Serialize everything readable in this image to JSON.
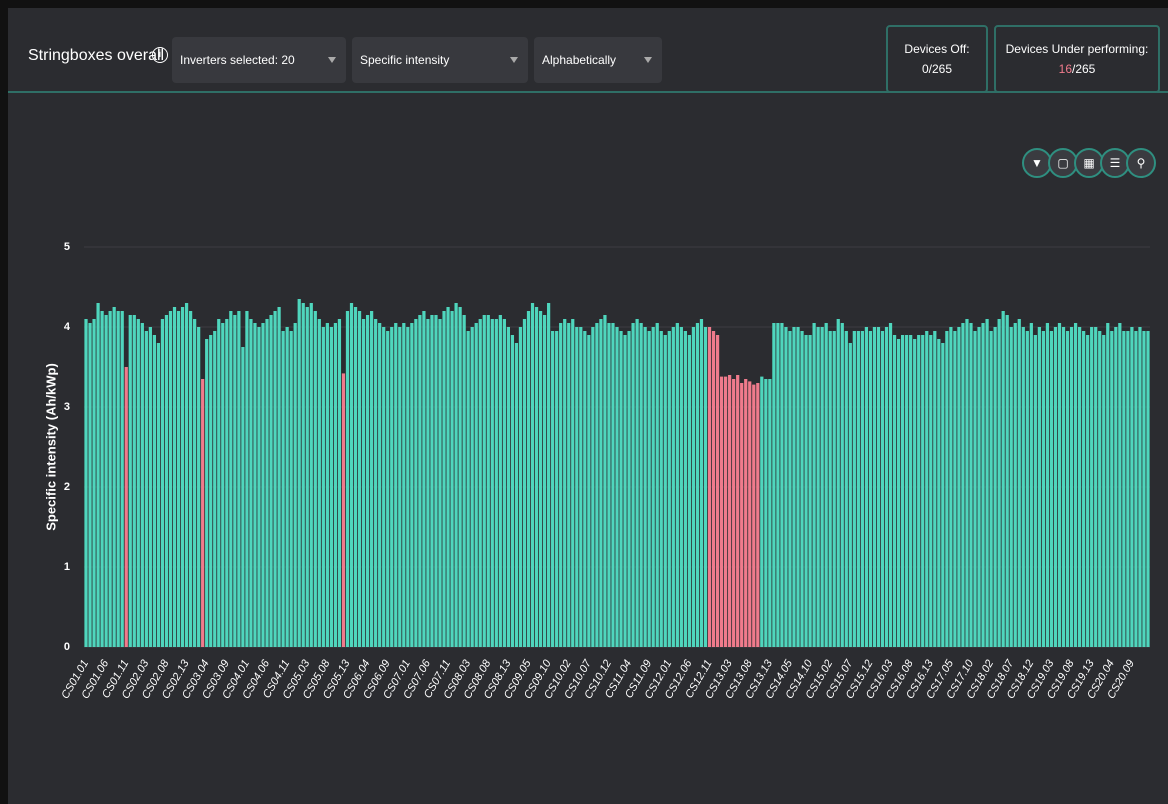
{
  "header": {
    "title": "Stringboxes overall",
    "dropdowns": [
      "Inverters selected: 20",
      "Specific intensity",
      "Alphabetically"
    ],
    "cards": {
      "devices_off": {
        "label": "Devices Off:",
        "value": "0/265"
      },
      "devices_under": {
        "label": "Devices Under performing:",
        "count": "16",
        "rest": "/265"
      }
    }
  },
  "chart_data": {
    "type": "bar",
    "ylabel": "Specific intensity (Ah/kWp)",
    "ylim": [
      0,
      5
    ],
    "yticks": [
      0,
      1,
      2,
      3,
      4,
      5
    ],
    "grid": true,
    "categories": [
      "CS01.01",
      null,
      null,
      null,
      null,
      "CS01.06",
      null,
      null,
      null,
      null,
      "CS01.11",
      null,
      null,
      null,
      null,
      "CS02.03",
      null,
      null,
      null,
      null,
      "CS02.08",
      null,
      null,
      null,
      null,
      "CS02.13",
      null,
      null,
      null,
      null,
      "CS03.04",
      null,
      null,
      null,
      null,
      "CS03.09",
      null,
      null,
      null,
      null,
      "CS04.01",
      null,
      null,
      null,
      null,
      "CS04.06",
      null,
      null,
      null,
      null,
      "CS04.11",
      null,
      null,
      null,
      null,
      "CS05.03",
      null,
      null,
      null,
      null,
      "CS05.08",
      null,
      null,
      null,
      null,
      "CS05.13",
      null,
      null,
      null,
      null,
      "CS06.04",
      null,
      null,
      null,
      null,
      "CS06.09",
      null,
      null,
      null,
      null,
      "CS07.01",
      null,
      null,
      null,
      null,
      "CS07.06",
      null,
      null,
      null,
      null,
      "CS07.11",
      null,
      null,
      null,
      null,
      "CS08.03",
      null,
      null,
      null,
      null,
      "CS08.08",
      null,
      null,
      null,
      null,
      "CS08.13",
      null,
      null,
      null,
      null,
      "CS09.05",
      null,
      null,
      null,
      null,
      "CS09.10",
      null,
      null,
      null,
      null,
      "CS10.02",
      null,
      null,
      null,
      null,
      "CS10.07",
      null,
      null,
      null,
      null,
      "CS10.12",
      null,
      null,
      null,
      null,
      "CS11.04",
      null,
      null,
      null,
      null,
      "CS11.09",
      null,
      null,
      null,
      null,
      "CS12.01",
      null,
      null,
      null,
      null,
      "CS12.06",
      null,
      null,
      null,
      null,
      "CS12.11",
      null,
      null,
      null,
      null,
      "CS13.03",
      null,
      null,
      null,
      null,
      "CS13.08",
      null,
      null,
      null,
      null,
      "CS13.13",
      null,
      null,
      null,
      null,
      "CS14.05",
      null,
      null,
      null,
      null,
      "CS14.10",
      null,
      null,
      null,
      null,
      "CS15.02",
      null,
      null,
      null,
      null,
      "CS15.07",
      null,
      null,
      null,
      null,
      "CS15.12",
      null,
      null,
      null,
      null,
      "CS16.03",
      null,
      null,
      null,
      null,
      "CS16.08",
      null,
      null,
      null,
      null,
      "CS16.13",
      null,
      null,
      null,
      null,
      "CS17.05",
      null,
      null,
      null,
      null,
      "CS17.10",
      null,
      null,
      null,
      null,
      "CS18.02",
      null,
      null,
      null,
      null,
      "CS18.07",
      null,
      null,
      null,
      null,
      "CS18.12",
      null,
      null,
      null,
      null,
      "CS19.03",
      null,
      null,
      null,
      null,
      "CS19.08",
      null,
      null,
      null,
      null,
      "CS19.13",
      null,
      null,
      null,
      null,
      "CS20.04",
      null,
      null,
      null,
      null,
      "CS20.09",
      null,
      null,
      null,
      null
    ],
    "values": [
      4.1,
      4.05,
      4.1,
      4.3,
      4.2,
      4.15,
      4.2,
      4.25,
      4.2,
      4.2,
      3.5,
      4.15,
      4.15,
      4.1,
      4.05,
      3.95,
      4.0,
      3.9,
      3.8,
      4.1,
      4.15,
      4.2,
      4.25,
      4.2,
      4.25,
      4.3,
      4.2,
      4.1,
      4.0,
      3.35,
      3.85,
      3.9,
      3.95,
      4.1,
      4.05,
      4.1,
      4.2,
      4.15,
      4.2,
      3.75,
      4.2,
      4.1,
      4.05,
      4.0,
      4.05,
      4.1,
      4.15,
      4.2,
      4.25,
      3.95,
      4.0,
      3.95,
      4.05,
      4.35,
      4.3,
      4.25,
      4.3,
      4.2,
      4.1,
      4.0,
      4.05,
      4.0,
      4.05,
      4.1,
      3.42,
      4.2,
      4.3,
      4.25,
      4.2,
      4.1,
      4.15,
      4.2,
      4.1,
      4.05,
      4.0,
      3.95,
      4.0,
      4.05,
      4.0,
      4.05,
      4.0,
      4.05,
      4.1,
      4.15,
      4.2,
      4.1,
      4.15,
      4.15,
      4.1,
      4.2,
      4.25,
      4.2,
      4.3,
      4.25,
      4.15,
      3.95,
      4.0,
      4.05,
      4.1,
      4.15,
      4.15,
      4.1,
      4.1,
      4.15,
      4.1,
      4.0,
      3.9,
      3.8,
      4.0,
      4.1,
      4.2,
      4.3,
      4.25,
      4.2,
      4.15,
      4.3,
      3.95,
      3.95,
      4.05,
      4.1,
      4.05,
      4.1,
      4.0,
      4.0,
      3.95,
      3.9,
      4.0,
      4.05,
      4.1,
      4.15,
      4.05,
      4.05,
      4.0,
      3.95,
      3.9,
      3.95,
      4.05,
      4.1,
      4.05,
      4.0,
      3.95,
      4.0,
      4.05,
      3.95,
      3.9,
      3.95,
      4.0,
      4.05,
      4.0,
      3.95,
      3.9,
      4.0,
      4.05,
      4.1,
      4.0,
      4.0,
      3.95,
      3.9,
      3.38,
      3.38,
      3.4,
      3.35,
      3.4,
      3.3,
      3.35,
      3.32,
      3.28,
      3.3,
      3.38,
      3.35,
      3.35,
      4.05,
      4.05,
      4.05,
      4.0,
      3.95,
      4.0,
      4.0,
      3.95,
      3.9,
      3.9,
      4.05,
      4.0,
      4.0,
      4.05,
      3.95,
      3.95,
      4.1,
      4.05,
      3.95,
      3.8,
      3.95,
      3.95,
      3.95,
      4.0,
      3.95,
      4.0,
      4.0,
      3.95,
      4.0,
      4.05,
      3.9,
      3.85,
      3.9,
      3.9,
      3.9,
      3.85,
      3.9,
      3.9,
      3.95,
      3.9,
      3.95,
      3.85,
      3.8,
      3.95,
      4.0,
      3.95,
      4.0,
      4.05,
      4.1,
      4.05,
      3.95,
      4.0,
      4.05,
      4.1,
      3.95,
      4.0,
      4.1,
      4.2,
      4.15,
      4.0,
      4.05,
      4.1,
      4.0,
      3.95,
      4.05,
      3.9,
      4.0,
      3.95,
      4.05,
      3.95,
      4.0,
      4.05,
      4.0,
      3.95,
      4.0,
      4.05,
      4.0,
      3.95,
      3.9,
      4.0,
      4.0,
      3.95,
      3.9,
      4.05,
      3.95,
      4.0,
      4.05,
      3.95,
      3.95,
      4.0,
      3.95,
      4.0,
      3.95,
      3.95
    ],
    "colors": [
      "#4fd6bd",
      "#4fd6bd",
      "#4fd6bd",
      "#4fd6bd",
      "#4fd6bd",
      "#4fd6bd",
      "#4fd6bd",
      "#4fd6bd",
      "#4fd6bd",
      "#4fd6bd",
      "#f07b8c",
      "#4fd6bd",
      "#4fd6bd",
      "#4fd6bd",
      "#4fd6bd",
      "#4fd6bd",
      "#4fd6bd",
      "#4fd6bd",
      "#4fd6bd",
      "#4fd6bd",
      "#4fd6bd",
      "#4fd6bd",
      "#4fd6bd",
      "#4fd6bd",
      "#4fd6bd",
      "#4fd6bd",
      "#4fd6bd",
      "#4fd6bd",
      "#4fd6bd",
      "#f07b8c",
      "#4fd6bd",
      "#4fd6bd",
      "#4fd6bd",
      "#4fd6bd",
      "#4fd6bd",
      "#4fd6bd",
      "#4fd6bd",
      "#4fd6bd",
      "#4fd6bd",
      "#4fd6bd",
      "#4fd6bd",
      "#4fd6bd",
      "#4fd6bd",
      "#4fd6bd",
      "#4fd6bd",
      "#4fd6bd",
      "#4fd6bd",
      "#4fd6bd",
      "#4fd6bd",
      "#4fd6bd",
      "#4fd6bd",
      "#4fd6bd",
      "#4fd6bd",
      "#4fd6bd",
      "#4fd6bd",
      "#4fd6bd",
      "#4fd6bd",
      "#4fd6bd",
      "#4fd6bd",
      "#4fd6bd",
      "#4fd6bd",
      "#4fd6bd",
      "#4fd6bd",
      "#4fd6bd",
      "#f07b8c",
      "#4fd6bd",
      "#4fd6bd",
      "#4fd6bd",
      "#4fd6bd",
      "#4fd6bd",
      "#4fd6bd",
      "#4fd6bd",
      "#4fd6bd",
      "#4fd6bd",
      "#4fd6bd",
      "#4fd6bd",
      "#4fd6bd",
      "#4fd6bd",
      "#4fd6bd",
      "#4fd6bd",
      "#4fd6bd",
      "#4fd6bd",
      "#4fd6bd",
      "#4fd6bd",
      "#4fd6bd",
      "#4fd6bd",
      "#4fd6bd",
      "#4fd6bd",
      "#4fd6bd",
      "#4fd6bd",
      "#4fd6bd",
      "#4fd6bd",
      "#4fd6bd",
      "#4fd6bd",
      "#4fd6bd",
      "#4fd6bd",
      "#4fd6bd",
      "#4fd6bd",
      "#4fd6bd",
      "#4fd6bd",
      "#4fd6bd",
      "#4fd6bd",
      "#4fd6bd",
      "#4fd6bd",
      "#4fd6bd",
      "#4fd6bd",
      "#4fd6bd",
      "#4fd6bd",
      "#4fd6bd",
      "#4fd6bd",
      "#4fd6bd",
      "#4fd6bd",
      "#4fd6bd",
      "#4fd6bd",
      "#4fd6bd",
      "#4fd6bd",
      "#4fd6bd",
      "#4fd6bd",
      "#4fd6bd",
      "#4fd6bd",
      "#4fd6bd",
      "#4fd6bd",
      "#4fd6bd",
      "#4fd6bd",
      "#4fd6bd",
      "#4fd6bd",
      "#4fd6bd",
      "#4fd6bd",
      "#4fd6bd",
      "#4fd6bd",
      "#4fd6bd",
      "#4fd6bd",
      "#4fd6bd",
      "#4fd6bd",
      "#4fd6bd",
      "#4fd6bd",
      "#4fd6bd",
      "#4fd6bd",
      "#4fd6bd",
      "#4fd6bd",
      "#4fd6bd",
      "#4fd6bd",
      "#4fd6bd",
      "#4fd6bd",
      "#4fd6bd",
      "#4fd6bd",
      "#4fd6bd",
      "#4fd6bd",
      "#4fd6bd",
      "#4fd6bd",
      "#4fd6bd",
      "#4fd6bd",
      "#4fd6bd",
      "#4fd6bd",
      "#4fd6bd",
      "#f07b8c",
      "#f07b8c",
      "#f07b8c",
      "#f07b8c",
      "#f07b8c",
      "#f07b8c",
      "#f07b8c",
      "#f07b8c",
      "#f07b8c",
      "#f07b8c",
      "#f07b8c",
      "#f07b8c",
      "#f07b8c",
      "#4fd6bd",
      "#4fd6bd",
      "#4fd6bd",
      "#4fd6bd",
      "#4fd6bd",
      "#4fd6bd",
      "#4fd6bd",
      "#4fd6bd",
      "#4fd6bd",
      "#4fd6bd",
      "#4fd6bd",
      "#4fd6bd",
      "#4fd6bd",
      "#4fd6bd",
      "#4fd6bd",
      "#4fd6bd",
      "#4fd6bd",
      "#4fd6bd",
      "#4fd6bd",
      "#4fd6bd",
      "#4fd6bd",
      "#4fd6bd",
      "#4fd6bd",
      "#4fd6bd",
      "#4fd6bd",
      "#4fd6bd",
      "#4fd6bd",
      "#4fd6bd",
      "#4fd6bd",
      "#4fd6bd",
      "#4fd6bd",
      "#4fd6bd",
      "#4fd6bd",
      "#4fd6bd",
      "#4fd6bd",
      "#4fd6bd",
      "#4fd6bd",
      "#4fd6bd",
      "#4fd6bd",
      "#4fd6bd",
      "#4fd6bd",
      "#4fd6bd",
      "#4fd6bd",
      "#4fd6bd",
      "#4fd6bd",
      "#4fd6bd",
      "#4fd6bd",
      "#4fd6bd",
      "#4fd6bd",
      "#4fd6bd",
      "#4fd6bd",
      "#4fd6bd",
      "#4fd6bd",
      "#4fd6bd",
      "#4fd6bd",
      "#4fd6bd",
      "#4fd6bd",
      "#4fd6bd",
      "#4fd6bd",
      "#4fd6bd",
      "#4fd6bd",
      "#4fd6bd",
      "#4fd6bd",
      "#4fd6bd",
      "#4fd6bd",
      "#4fd6bd",
      "#4fd6bd",
      "#4fd6bd",
      "#4fd6bd",
      "#4fd6bd",
      "#4fd6bd",
      "#4fd6bd",
      "#4fd6bd",
      "#4fd6bd",
      "#4fd6bd",
      "#4fd6bd",
      "#4fd6bd",
      "#4fd6bd",
      "#4fd6bd",
      "#4fd6bd",
      "#4fd6bd",
      "#4fd6bd",
      "#4fd6bd",
      "#4fd6bd",
      "#4fd6bd",
      "#4fd6bd",
      "#4fd6bd",
      "#4fd6bd",
      "#4fd6bd",
      "#4fd6bd",
      "#4fd6bd",
      "#4fd6bd",
      "#4fd6bd",
      "#4fd6bd",
      "#4fd6bd",
      "#4fd6bd",
      "#4fd6bd",
      "#4fd6bd",
      "#4fd6bd",
      "#4fd6bd",
      "#4fd6bd",
      "#4fd6bd",
      "#4fd6bd",
      "#4fd6bd"
    ]
  }
}
